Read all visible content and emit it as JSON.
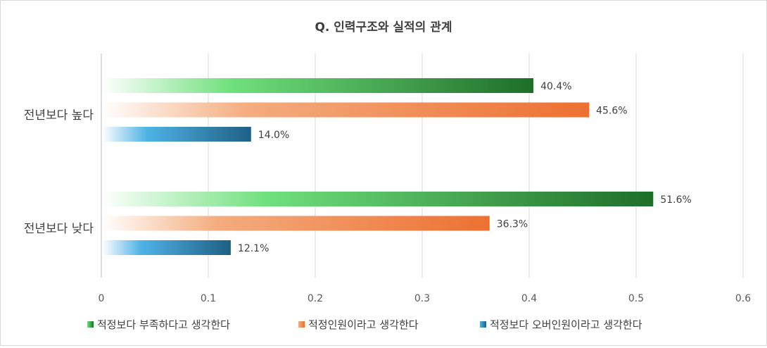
{
  "chart_data": {
    "type": "bar",
    "orientation": "horizontal",
    "title": "Q. 인력구조와 실적의 관계",
    "categories": [
      "전년보다 높다",
      "전년보다 낮다"
    ],
    "series": [
      {
        "name": "적정보다 부족하다고 생각한다",
        "values": [
          0.404,
          0.516
        ],
        "labels": [
          "40.4%",
          "51.6%"
        ],
        "color": "#1e6e28"
      },
      {
        "name": "적정인원이라고 생각한다",
        "values": [
          0.456,
          0.363
        ],
        "labels": [
          "45.6%",
          "36.3%"
        ],
        "color": "#ed7031"
      },
      {
        "name": "적정보다 오버인원이라고 생각한다",
        "values": [
          0.14,
          0.121
        ],
        "labels": [
          "14.0%",
          "12.1%"
        ],
        "color": "#1f5f84"
      }
    ],
    "xlim": [
      0,
      0.6
    ],
    "xticks": [
      "0",
      "0.1",
      "0.2",
      "0.3",
      "0.4",
      "0.5",
      "0.6"
    ],
    "grid": true,
    "legend": "bottom"
  }
}
